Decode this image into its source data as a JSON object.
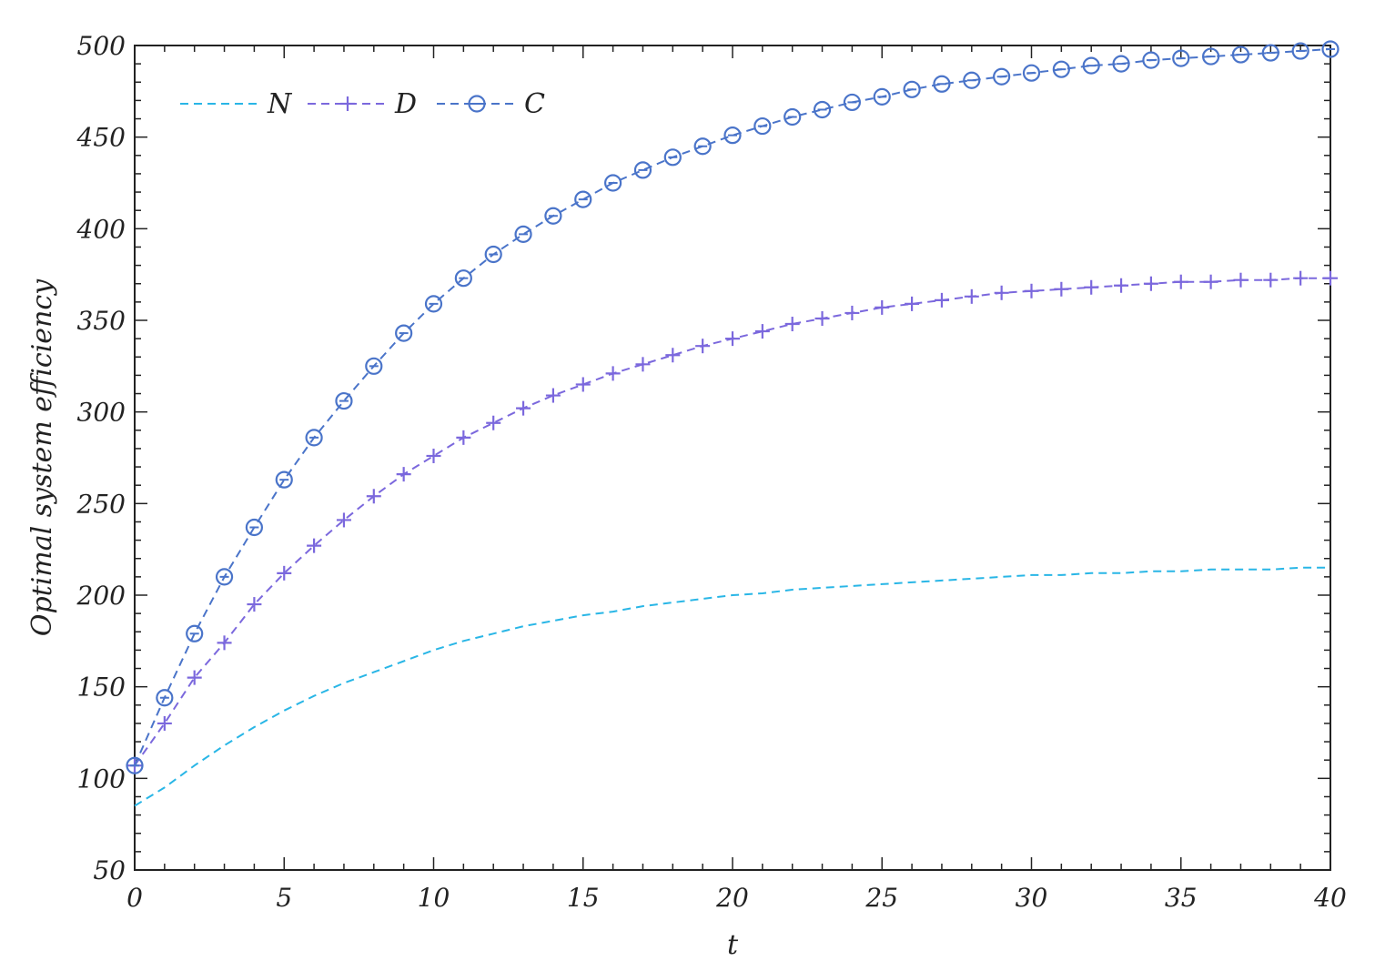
{
  "chart_data": {
    "type": "line",
    "title": "",
    "xlabel": "t",
    "ylabel": "Optimal system efficiency",
    "xlim": [
      0,
      40
    ],
    "ylim": [
      50,
      500
    ],
    "xticks": [
      0,
      5,
      10,
      15,
      20,
      25,
      30,
      35,
      40
    ],
    "yticks": [
      50,
      100,
      150,
      200,
      250,
      300,
      350,
      400,
      450,
      500
    ],
    "grid": false,
    "legend_position": "top-left",
    "x": [
      0,
      1,
      2,
      3,
      4,
      5,
      6,
      7,
      8,
      9,
      10,
      11,
      12,
      13,
      14,
      15,
      16,
      17,
      18,
      19,
      20,
      21,
      22,
      23,
      24,
      25,
      26,
      27,
      28,
      29,
      30,
      31,
      32,
      33,
      34,
      35,
      36,
      37,
      38,
      39,
      40
    ],
    "series": [
      {
        "name": "N",
        "style": "dashed",
        "marker": "none",
        "color": "#29b6e6",
        "values": [
          85,
          95,
          107,
          118,
          128,
          137,
          145,
          152,
          158,
          164,
          170,
          175,
          179,
          183,
          186,
          189,
          191,
          194,
          196,
          198,
          200,
          201,
          203,
          204,
          205,
          206,
          207,
          208,
          209,
          210,
          211,
          211,
          212,
          212,
          213,
          213,
          214,
          214,
          214,
          215,
          215
        ]
      },
      {
        "name": "D",
        "style": "dashed",
        "marker": "plus",
        "color": "#7b68dd",
        "values": [
          107,
          130,
          155,
          174,
          195,
          212,
          227,
          241,
          254,
          266,
          276,
          286,
          294,
          302,
          309,
          315,
          321,
          326,
          331,
          336,
          340,
          344,
          348,
          351,
          354,
          357,
          359,
          361,
          363,
          365,
          366,
          367,
          368,
          369,
          370,
          371,
          371,
          372,
          372,
          373,
          373
        ]
      },
      {
        "name": "C",
        "style": "dashed",
        "marker": "circle",
        "color": "#4a74c9",
        "values": [
          107,
          144,
          179,
          210,
          237,
          263,
          286,
          306,
          325,
          343,
          359,
          373,
          386,
          397,
          407,
          416,
          425,
          432,
          439,
          445,
          451,
          456,
          461,
          465,
          469,
          472,
          476,
          479,
          481,
          483,
          485,
          487,
          489,
          490,
          492,
          493,
          494,
          495,
          496,
          497,
          498
        ]
      }
    ]
  }
}
